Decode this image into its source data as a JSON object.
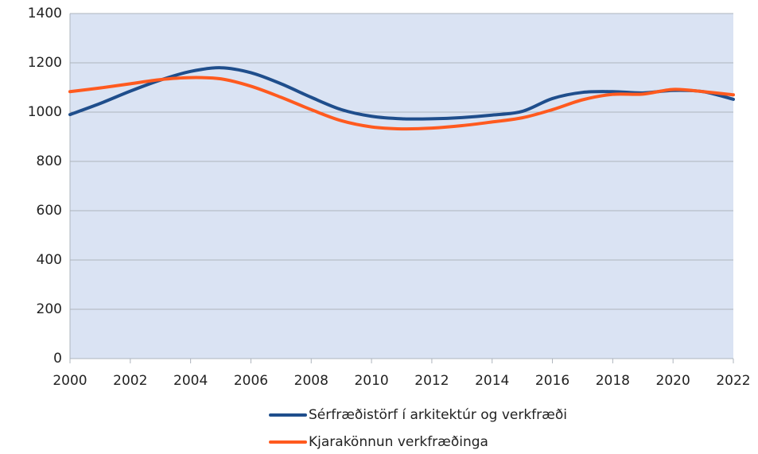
{
  "chart_data": {
    "type": "line",
    "x": [
      2000,
      2001,
      2002,
      2003,
      2004,
      2005,
      2006,
      2007,
      2008,
      2009,
      2010,
      2011,
      2012,
      2013,
      2014,
      2015,
      2016,
      2017,
      2018,
      2019,
      2020,
      2021,
      2022
    ],
    "series": [
      {
        "name": "Sérfræðistörf í arkitektúr og verkfræði",
        "color": "#1f4e8c",
        "values": [
          990,
          1035,
          1085,
          1130,
          1165,
          1180,
          1160,
          1115,
          1060,
          1010,
          983,
          973,
          973,
          978,
          988,
          1003,
          1055,
          1080,
          1083,
          1078,
          1088,
          1083,
          1052
        ]
      },
      {
        "name": "Kjarakönnun verkfræðinga",
        "color": "#ff5a1f",
        "values": [
          1083,
          1098,
          1115,
          1132,
          1140,
          1135,
          1105,
          1060,
          1010,
          965,
          940,
          932,
          935,
          945,
          960,
          977,
          1010,
          1050,
          1072,
          1073,
          1092,
          1083,
          1070
        ]
      }
    ],
    "xlim": [
      2000,
      2022
    ],
    "xticks": [
      2000,
      2002,
      2004,
      2006,
      2008,
      2010,
      2012,
      2014,
      2016,
      2018,
      2020,
      2022
    ],
    "ylim": [
      0,
      1400
    ],
    "yticks": [
      0,
      200,
      400,
      600,
      800,
      1000,
      1200,
      1400
    ],
    "grid": true,
    "legend": "bottom"
  }
}
